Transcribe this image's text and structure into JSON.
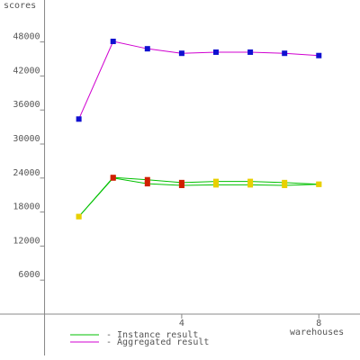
{
  "chart_data": {
    "type": "line",
    "y_label": "scores",
    "x_label": "warehouses",
    "x": [
      1,
      2,
      3,
      4,
      5,
      6,
      7,
      8
    ],
    "xlim": [
      -1.3,
      9.2
    ],
    "xticks": [
      4,
      8
    ],
    "ylim": [
      -7300,
      55400
    ],
    "yticks": [
      6000,
      12000,
      18000,
      24000,
      30000,
      36000,
      42000,
      48000
    ],
    "instance": {
      "name": "- Instance result",
      "color": "#00c000",
      "lines": [
        {
          "values": [
            17200,
            24100,
            23700,
            23200,
            23400,
            23400,
            23200,
            22900
          ],
          "marker_colors": [
            "#e8d000",
            "#d02000",
            "#d02000",
            "#d02000",
            "#e8d000",
            "#e8d000",
            "#e8d000",
            "#e8d000"
          ]
        },
        {
          "values": [
            17200,
            24000,
            23000,
            22700,
            22800,
            22800,
            22700,
            22900
          ],
          "marker_colors": [
            "#e8d000",
            "#d02000",
            "#d02000",
            "#d02000",
            "#e8d000",
            "#e8d000",
            "#e8d000",
            "#e8d000"
          ]
        }
      ]
    },
    "aggregated": {
      "name": "- Aggregated result",
      "color": "#d000d0",
      "marker_color": "#1010d0",
      "values": [
        34400,
        48100,
        46800,
        46000,
        46200,
        46200,
        46000,
        45600
      ]
    }
  }
}
